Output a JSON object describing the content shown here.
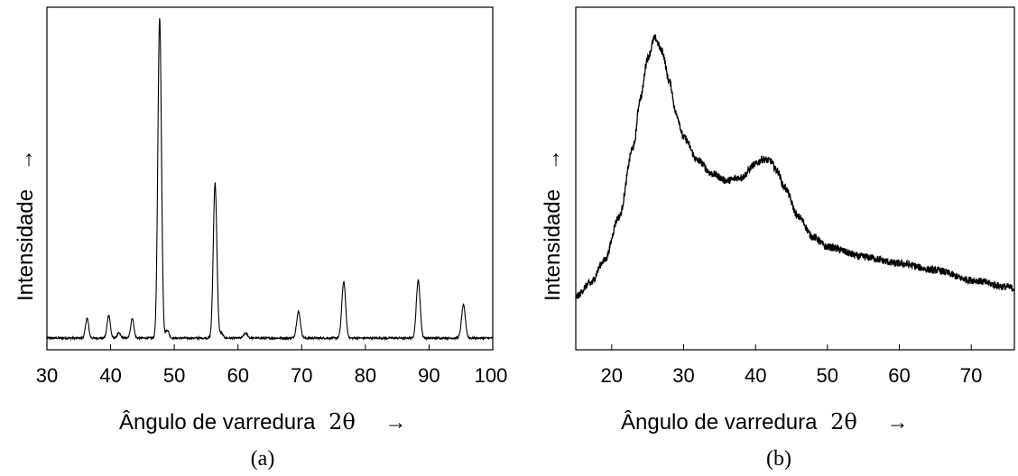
{
  "chart_data": [
    {
      "type": "line",
      "caption": "(a)",
      "xlabel": "Ângulo de varredura 2θ",
      "xlabel_text": "Ângulo de varredura",
      "xlabel_symbol": "2θ",
      "xlabel_arrow": "→",
      "ylabel": "Intensidade",
      "ylabel_arrow": "→",
      "xlim": [
        30,
        100
      ],
      "ylim": [
        0,
        100
      ],
      "y_ticks_labeled": false,
      "grid": false,
      "xticks": [
        "30",
        "40",
        "50",
        "60",
        "70",
        "80",
        "90",
        "100"
      ],
      "baseline": 3,
      "peaks": [
        {
          "x": 36.3,
          "y": 9,
          "w": 0.25
        },
        {
          "x": 39.7,
          "y": 10,
          "w": 0.25
        },
        {
          "x": 41.3,
          "y": 4.5,
          "w": 0.25
        },
        {
          "x": 43.4,
          "y": 9,
          "w": 0.25
        },
        {
          "x": 47.7,
          "y": 100,
          "w": 0.28
        },
        {
          "x": 48.9,
          "y": 5.5,
          "w": 0.25
        },
        {
          "x": 56.4,
          "y": 50,
          "w": 0.28
        },
        {
          "x": 57.4,
          "y": 4.5,
          "w": 0.25
        },
        {
          "x": 61.2,
          "y": 4.5,
          "w": 0.3
        },
        {
          "x": 69.5,
          "y": 11,
          "w": 0.3
        },
        {
          "x": 76.6,
          "y": 20,
          "w": 0.3
        },
        {
          "x": 88.3,
          "y": 20.5,
          "w": 0.3
        },
        {
          "x": 95.4,
          "y": 13,
          "w": 0.3
        }
      ]
    },
    {
      "type": "line",
      "caption": "(b)",
      "xlabel": "Ângulo de varredura 2θ",
      "xlabel_text": "Ângulo de varredura",
      "xlabel_symbol": "2θ",
      "xlabel_arrow": "→",
      "ylabel": "Intensidade",
      "ylabel_arrow": "→",
      "xlim": [
        15,
        76
      ],
      "ylim": [
        0,
        100
      ],
      "y_ticks_labeled": false,
      "grid": false,
      "xticks": [
        "20",
        "30",
        "40",
        "50",
        "60",
        "70"
      ],
      "noisy": true,
      "x": [
        15,
        17,
        19,
        21,
        23,
        24,
        25,
        26,
        27,
        28,
        29,
        30,
        32,
        34,
        36,
        38,
        40,
        41,
        42,
        43,
        44,
        46,
        48,
        50,
        55,
        60,
        65,
        70,
        75,
        76
      ],
      "y": [
        16,
        20,
        27,
        40,
        61,
        76,
        88,
        94,
        90,
        81,
        71,
        64,
        57,
        53,
        51,
        52,
        56,
        57.5,
        57,
        54,
        49,
        40,
        34,
        31,
        28,
        26,
        24,
        21,
        19,
        18.5
      ]
    }
  ]
}
